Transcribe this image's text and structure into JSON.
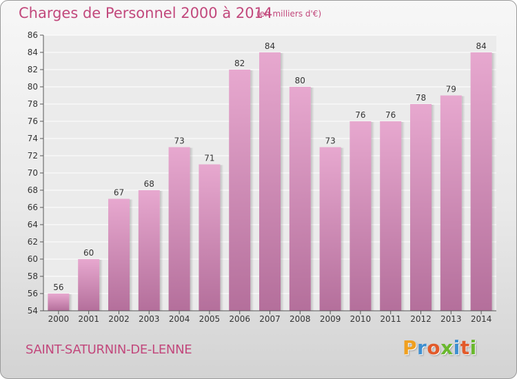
{
  "title": "Charges de Personnel 2000 à 2014",
  "subtitle": "(en milliers d'€)",
  "commune": "SAINT-SATURNIN-DE-LENNE",
  "logo": {
    "text": "Proxiti",
    "colors": [
      "#f0a020",
      "#3e8fd0",
      "#e25a2a",
      "#6ab82e",
      "#3e8fd0",
      "#e25a2a",
      "#6ab82e"
    ]
  },
  "colors": {
    "bar_top": "#e7a8cf",
    "bar_bottom": "#b46f9b",
    "text_accent": "#c2487c"
  },
  "chart_data": {
    "type": "bar",
    "categories": [
      "2000",
      "2001",
      "2002",
      "2003",
      "2004",
      "2005",
      "2006",
      "2007",
      "2008",
      "2009",
      "2010",
      "2011",
      "2012",
      "2013",
      "2014"
    ],
    "values": [
      56,
      60,
      67,
      68,
      73,
      71,
      82,
      84,
      80,
      73,
      76,
      76,
      78,
      79,
      84
    ],
    "ylim": [
      54,
      86
    ],
    "yticks": [
      54,
      56,
      58,
      60,
      62,
      64,
      66,
      68,
      70,
      72,
      74,
      76,
      78,
      80,
      82,
      84,
      86
    ],
    "grid": true,
    "xlabel": "",
    "ylabel": ""
  }
}
